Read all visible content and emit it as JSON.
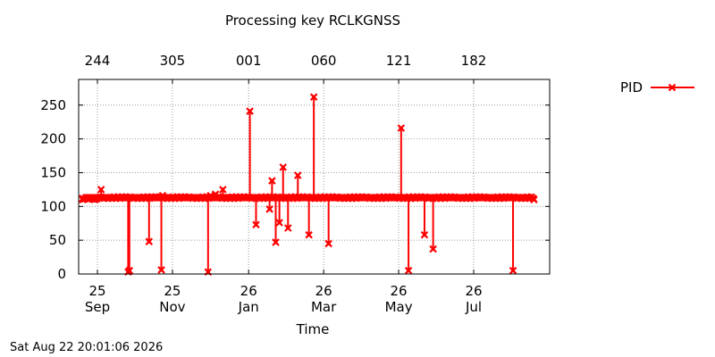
{
  "chart_data": {
    "type": "line",
    "title": "Processing key RCLKGNSS",
    "xlabel": "Time",
    "ylabel": "",
    "timestamp": "Sat Aug 22 20:01:06 2026",
    "ylim": [
      0,
      288
    ],
    "xlim_days": [
      0,
      368
    ],
    "yticks": [
      0,
      50,
      100,
      150,
      200,
      250
    ],
    "bottom_ticks": [
      {
        "day": 0,
        "label1": "25",
        "label2": "Sep"
      },
      {
        "day": 61,
        "label1": "25",
        "label2": "Nov"
      },
      {
        "day": 123,
        "label1": "26",
        "label2": "Jan"
      },
      {
        "day": 184,
        "label1": "26",
        "label2": "Mar"
      },
      {
        "day": 245,
        "label1": "26",
        "label2": "May"
      },
      {
        "day": 306,
        "label1": "26",
        "label2": "Jul"
      }
    ],
    "top_ticks": [
      {
        "day": 0,
        "label": "244"
      },
      {
        "day": 61,
        "label": "305"
      },
      {
        "day": 123,
        "label": "001"
      },
      {
        "day": 184,
        "label": "060"
      },
      {
        "day": 245,
        "label": "121"
      },
      {
        "day": 306,
        "label": "182"
      }
    ],
    "grid": true,
    "legend_position": "top-right",
    "color": "#ff0000",
    "series": [
      {
        "name": "PID",
        "baseline": 113,
        "baseline_range_days": [
          -12,
          355
        ],
        "x_days": [
          -12,
          -2,
          3,
          8,
          21,
          25,
          26,
          42,
          45,
          52,
          53,
          66,
          70,
          90,
          92,
          96,
          102,
          105,
          124,
          125,
          129,
          140,
          142,
          145,
          148,
          151,
          155,
          163,
          172,
          176,
          181,
          188,
          238,
          247,
          249,
          253,
          266,
          273,
          275,
          290,
          306,
          338,
          342,
          355
        ],
        "values": [
          110,
          113,
          125,
          113,
          113,
          3,
          5,
          48,
          113,
          6,
          116,
          113,
          113,
          3,
          116,
          118,
          125,
          113,
          241,
          113,
          73,
          96,
          138,
          47,
          76,
          158,
          68,
          146,
          58,
          262,
          113,
          45,
          113,
          216,
          113,
          5,
          58,
          37,
          113,
          113,
          113,
          5,
          113,
          110
        ]
      }
    ]
  }
}
